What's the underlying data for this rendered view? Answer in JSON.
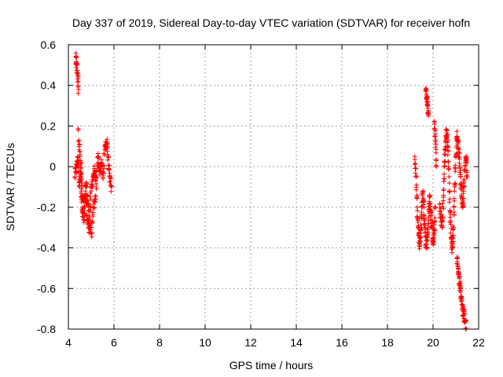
{
  "chart_data": {
    "type": "scatter",
    "title": "Day 337 of 2019, Sidereal Day-to-day VTEC variation (SDTVAR) for receiver hofn",
    "xlabel": "GPS time / hours",
    "ylabel": "SDTVAR / TECUs",
    "xlim": [
      4,
      22
    ],
    "ylim": [
      -0.8,
      0.6
    ],
    "xticks": [
      "4",
      "6",
      "8",
      "10",
      "12",
      "14",
      "16",
      "18",
      "20",
      "22"
    ],
    "yticks": [
      "0.6",
      "0.4",
      "0.2",
      "0",
      "-0.2",
      "-0.4",
      "-0.6",
      "-0.8"
    ],
    "grid": true,
    "marker": "+",
    "marker_color": "#ff0000",
    "series": [
      {
        "name": "SDTVAR",
        "segments": [
          {
            "x": [
              4.28,
              4.36,
              4.42,
              4.48,
              4.55,
              4.62,
              4.7,
              4.78,
              4.85,
              4.92,
              5.0,
              5.08,
              5.15,
              5.22,
              5.3,
              5.38,
              5.45,
              5.52,
              5.6,
              5.68,
              5.75,
              5.82,
              5.9
            ],
            "y": [
              -0.05,
              0.0,
              0.05,
              -0.1,
              0.02,
              -0.15,
              -0.2,
              -0.08,
              -0.18,
              -0.25,
              -0.12,
              -0.05,
              -0.02,
              -0.1,
              0.05,
              -0.02,
              0.02,
              -0.06,
              0.1,
              0.12,
              0.05,
              -0.05,
              -0.1
            ]
          },
          {
            "x": [
              4.32,
              4.36,
              4.4,
              4.44
            ],
            "y": [
              0.54,
              0.5,
              0.45,
              0.38
            ]
          },
          {
            "x": [
              4.44,
              4.5,
              4.56,
              4.62,
              4.68,
              4.75,
              4.82,
              4.9,
              5.0,
              5.1,
              5.2
            ],
            "y": [
              0.18,
              0.05,
              -0.12,
              -0.22,
              -0.26,
              -0.14,
              -0.24,
              -0.3,
              -0.33,
              -0.2,
              -0.16
            ]
          },
          {
            "x": [
              19.2,
              19.25,
              19.3,
              19.35,
              19.4,
              19.45,
              19.5,
              19.55,
              19.6,
              19.65,
              19.7,
              19.75,
              19.8,
              19.85,
              19.9,
              19.95,
              20.0,
              20.05,
              20.1
            ],
            "y": [
              0.05,
              -0.05,
              -0.2,
              -0.3,
              -0.38,
              -0.35,
              -0.25,
              -0.12,
              -0.2,
              -0.3,
              -0.4,
              -0.35,
              -0.25,
              -0.15,
              -0.22,
              -0.3,
              -0.38,
              -0.33,
              -0.2
            ]
          },
          {
            "x": [
              19.68,
              19.72,
              19.76,
              19.8
            ],
            "y": [
              0.38,
              0.34,
              0.3,
              0.25
            ]
          },
          {
            "x": [
              20.05,
              20.1,
              20.15
            ],
            "y": [
              0.22,
              0.15,
              0.0
            ]
          },
          {
            "x": [
              20.3,
              20.35,
              20.4,
              20.45,
              20.5,
              20.55,
              20.6,
              20.65,
              20.7,
              20.75,
              20.8,
              20.85,
              20.9,
              20.95,
              21.0,
              21.05,
              21.1,
              21.15,
              21.2,
              21.25,
              21.3,
              21.35,
              21.4,
              21.45,
              21.5
            ],
            "y": [
              -0.2,
              -0.25,
              -0.3,
              -0.15,
              0.02,
              0.12,
              0.18,
              0.1,
              -0.05,
              -0.25,
              -0.35,
              -0.4,
              -0.3,
              -0.1,
              0.05,
              0.15,
              0.12,
              0.05,
              -0.05,
              -0.15,
              -0.2,
              -0.1,
              0.0,
              0.05,
              -0.05
            ]
          },
          {
            "x": [
              21.05,
              21.1,
              21.15,
              21.2,
              21.25,
              21.3,
              21.35,
              21.4,
              21.45
            ],
            "y": [
              -0.45,
              -0.5,
              -0.55,
              -0.6,
              -0.65,
              -0.7,
              -0.73,
              -0.76,
              -0.8
            ]
          }
        ]
      }
    ]
  }
}
